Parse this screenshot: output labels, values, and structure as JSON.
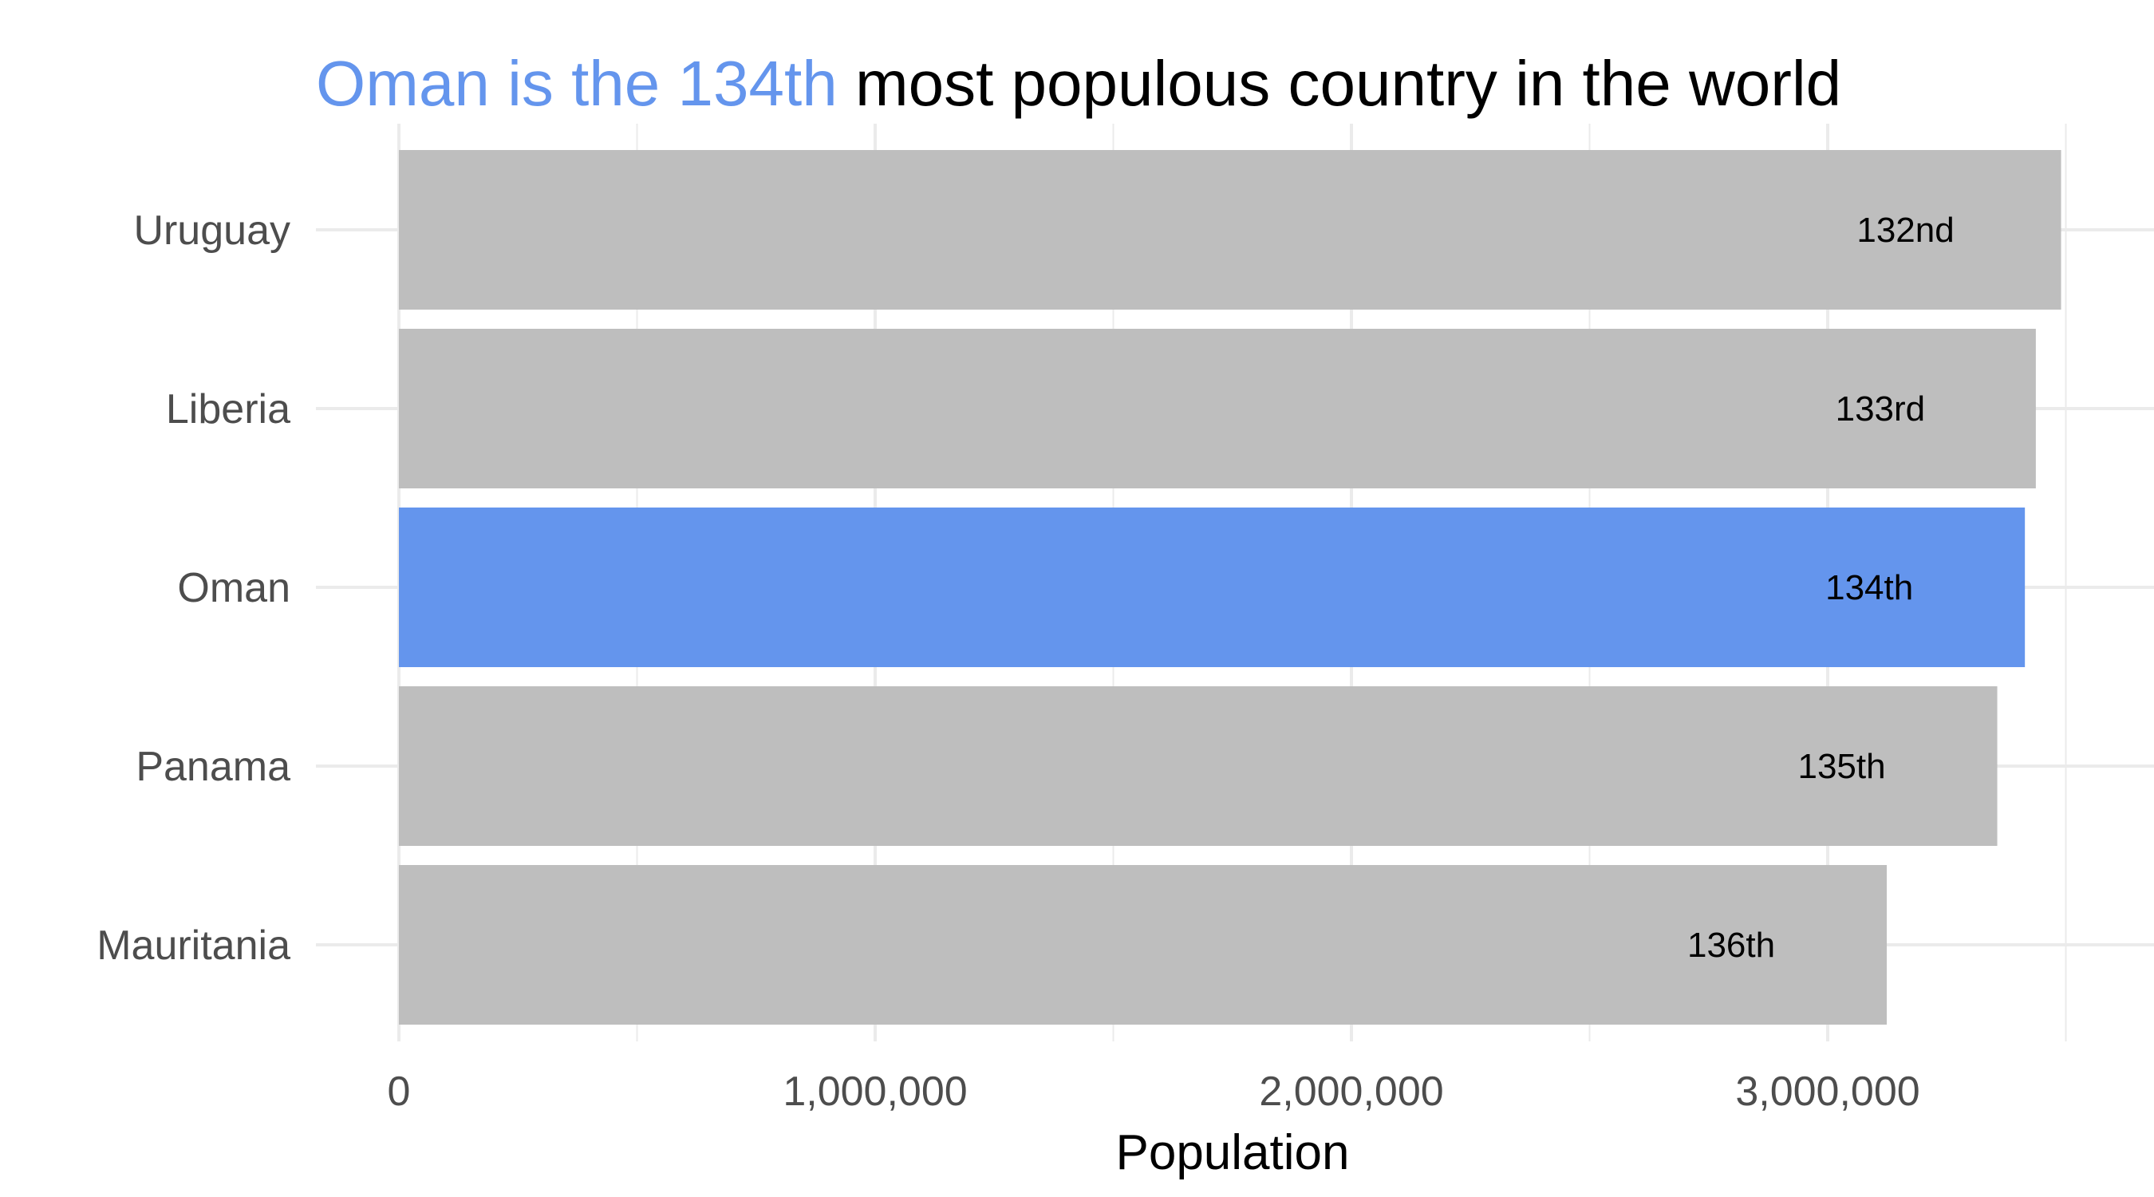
{
  "chart_data": {
    "type": "bar",
    "orientation": "horizontal",
    "title": {
      "highlight": "Oman is the 134th",
      "rest": "most populous country in the world"
    },
    "xlabel": "Population",
    "ylabel": "",
    "xlim": [
      0,
      3500000
    ],
    "x_ticks": [
      0,
      1000000,
      2000000,
      3000000
    ],
    "x_tick_labels": [
      "0",
      "1,000,000",
      "2,000,000",
      "3,000,000"
    ],
    "categories": [
      "Uruguay",
      "Liberia",
      "Oman",
      "Panama",
      "Mauritania"
    ],
    "values": [
      3490000,
      3437000,
      3414000,
      3356000,
      3124000
    ],
    "labels": [
      "132nd",
      "133rd",
      "134th",
      "135th",
      "136th"
    ],
    "highlight_category": "Oman",
    "grid": true,
    "legend": "none",
    "colors": {
      "highlight": "#6495ED",
      "default": "#BEBEBE",
      "grid": "#EBEBEB"
    }
  }
}
